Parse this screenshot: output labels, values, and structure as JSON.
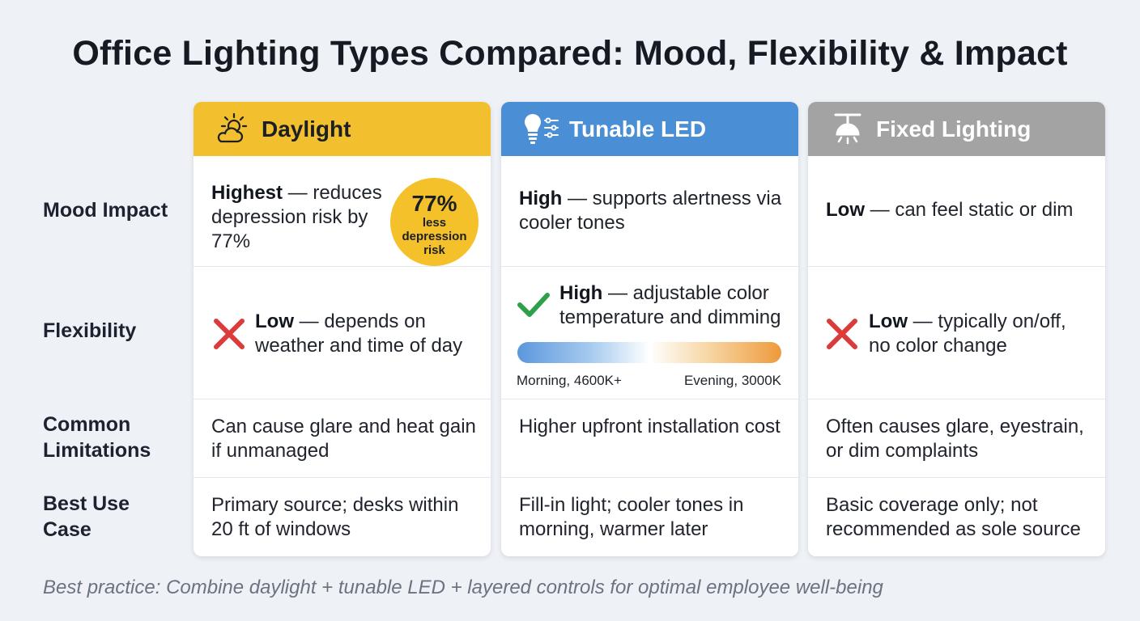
{
  "title": "Office Lighting Types Compared: Mood, Flexibility & Impact",
  "row_labels": {
    "mood": "Mood Impact",
    "flexibility": "Flexibility",
    "limitations": "Common Limitations",
    "best_use": "Best Use Case"
  },
  "columns": {
    "daylight": {
      "name": "Daylight",
      "icon": "sun-cloud-icon",
      "header_color": "#f2bf2f",
      "mood_rating": "Highest",
      "mood_text": " — reduces depression risk by 77%",
      "badge_value": "77%",
      "badge_caption": "less depression risk",
      "flex_rating": "Low",
      "flex_text": " — depends on weather and time of day",
      "flex_mark": "x-mark-icon",
      "limitations": "Can cause glare and heat gain if unmanaged",
      "best_use": "Primary source; desks within 20 ft of windows"
    },
    "tunable": {
      "name": "Tunable LED",
      "icon": "bulb-sliders-icon",
      "header_color": "#4a8ed6",
      "mood_rating": "High",
      "mood_text": " — supports alertness via cooler tones",
      "flex_rating": "High",
      "flex_text": " — adjustable color temperature and dimming",
      "flex_mark": "check-mark-icon",
      "gradient_left_label": "Morning, 4600K+",
      "gradient_right_label": "Evening, 3000K",
      "limitations": "Higher upfront installation cost",
      "best_use": "Fill-in light; cooler tones in morning, warmer later"
    },
    "fixed": {
      "name": "Fixed Lighting",
      "icon": "ceiling-lamp-icon",
      "header_color": "#a3a3a3",
      "mood_rating": "Low",
      "mood_text": " — can feel static or dim",
      "flex_rating": "Low",
      "flex_text": " — typically on/off, no color change",
      "flex_mark": "x-mark-icon",
      "limitations": "Often causes glare, eyestrain, or dim complaints",
      "best_use": "Basic coverage only; not recommended as sole source"
    }
  },
  "footer": "Best practice: Combine daylight + tunable LED + layered controls for optimal employee well-being"
}
